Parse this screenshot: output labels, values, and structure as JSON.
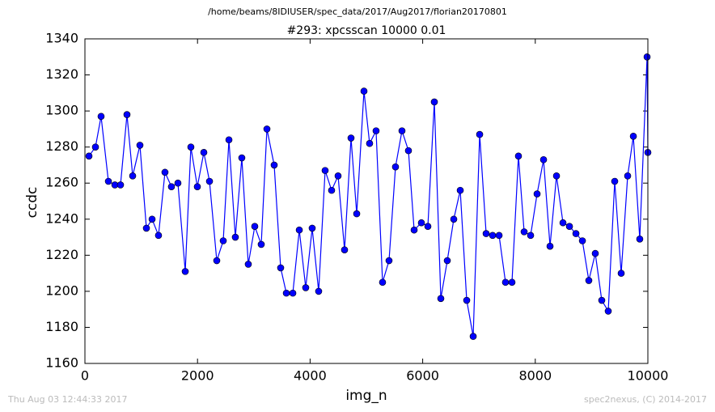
{
  "chart_data": {
    "type": "line",
    "suptitle": "/home/beams/8IDIUSER/spec_data/2017/Aug2017/florian20170801",
    "title": "#293: xpcsscan 10000 0.01",
    "x_label": "img_n",
    "y_label": "ccdc",
    "footer_left": "Thu Aug 03 12:44:33 2017",
    "footer_right": "spec2nexus, (C) 2014-2017",
    "color": "#0000ff",
    "x": [
      72,
      187,
      287,
      417,
      532,
      632,
      747,
      848,
      977,
      1092,
      1193,
      1307,
      1422,
      1537,
      1652,
      1782,
      1882,
      1997,
      2112,
      2213,
      2342,
      2457,
      2558,
      2672,
      2787,
      2902,
      3017,
      3132,
      3233,
      3362,
      3477,
      3578,
      3693,
      3808,
      3922,
      4037,
      4152,
      4267,
      4382,
      4497,
      4612,
      4727,
      4828,
      4957,
      5057,
      5172,
      5287,
      5402,
      5517,
      5632,
      5747,
      5848,
      5977,
      6092,
      6207,
      6322,
      6437,
      6552,
      6667,
      6782,
      6897,
      7012,
      7127,
      7242,
      7357,
      7471,
      7586,
      7701,
      7802,
      7917,
      8032,
      8147,
      8262,
      8377,
      8492,
      8607,
      8722,
      8837,
      8951,
      9066,
      9181,
      9296,
      9411,
      9526,
      9641,
      9742,
      9856,
      9986,
      10000
    ],
    "values": [
      1275,
      1280,
      1297,
      1261,
      1259,
      1259,
      1298,
      1264,
      1281,
      1235,
      1240,
      1231,
      1266,
      1258,
      1260,
      1211,
      1280,
      1258,
      1277,
      1261,
      1217,
      1228,
      1284,
      1230,
      1274,
      1215,
      1236,
      1226,
      1290,
      1270,
      1213,
      1199,
      1199,
      1234,
      1202,
      1235,
      1200,
      1267,
      1256,
      1264,
      1223,
      1285,
      1243,
      1311,
      1282,
      1289,
      1205,
      1217,
      1269,
      1289,
      1278,
      1234,
      1238,
      1236,
      1305,
      1196,
      1217,
      1240,
      1256,
      1195,
      1175,
      1287,
      1232,
      1231,
      1231,
      1205,
      1205,
      1275,
      1233,
      1231,
      1254,
      1273,
      1225,
      1264,
      1238,
      1236,
      1232,
      1228,
      1206,
      1221,
      1195,
      1189,
      1261,
      1210,
      1264,
      1286,
      1229,
      1330,
      1277
    ],
    "xlim": [
      0,
      10000
    ],
    "xticks": [
      0,
      2000,
      4000,
      6000,
      8000,
      10000
    ],
    "ylim": [
      1160,
      1340
    ],
    "yticks": [
      1160,
      1180,
      1200,
      1220,
      1240,
      1260,
      1280,
      1300,
      1320,
      1340
    ],
    "grid": false
  }
}
